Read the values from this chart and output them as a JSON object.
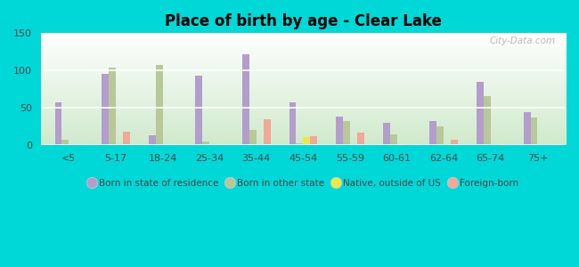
{
  "title": "Place of birth by age - Clear Lake",
  "categories": [
    "<5",
    "5-17",
    "18-24",
    "25-34",
    "35-44",
    "45-54",
    "55-59",
    "60-61",
    "62-64",
    "65-74",
    "75+"
  ],
  "series": {
    "Born in state of residence": [
      57,
      95,
      13,
      93,
      122,
      57,
      38,
      30,
      33,
      85,
      44
    ],
    "Born in other state": [
      7,
      104,
      107,
      5,
      20,
      3,
      33,
      15,
      25,
      66,
      37
    ],
    "Native, outside of US": [
      0,
      0,
      0,
      0,
      0,
      11,
      0,
      0,
      0,
      0,
      0
    ],
    "Foreign-born": [
      2,
      18,
      2,
      2,
      35,
      12,
      17,
      2,
      7,
      2,
      2
    ]
  },
  "colors": {
    "Born in state of residence": "#b39dcc",
    "Born in other state": "#b8c899",
    "Native, outside of US": "#ede84a",
    "Foreign-born": "#f0a898"
  },
  "ylim": [
    0,
    150
  ],
  "yticks": [
    0,
    50,
    100,
    150
  ],
  "outer_background": "#00d8d8",
  "bar_width": 0.15,
  "watermark": "City-Data.com"
}
